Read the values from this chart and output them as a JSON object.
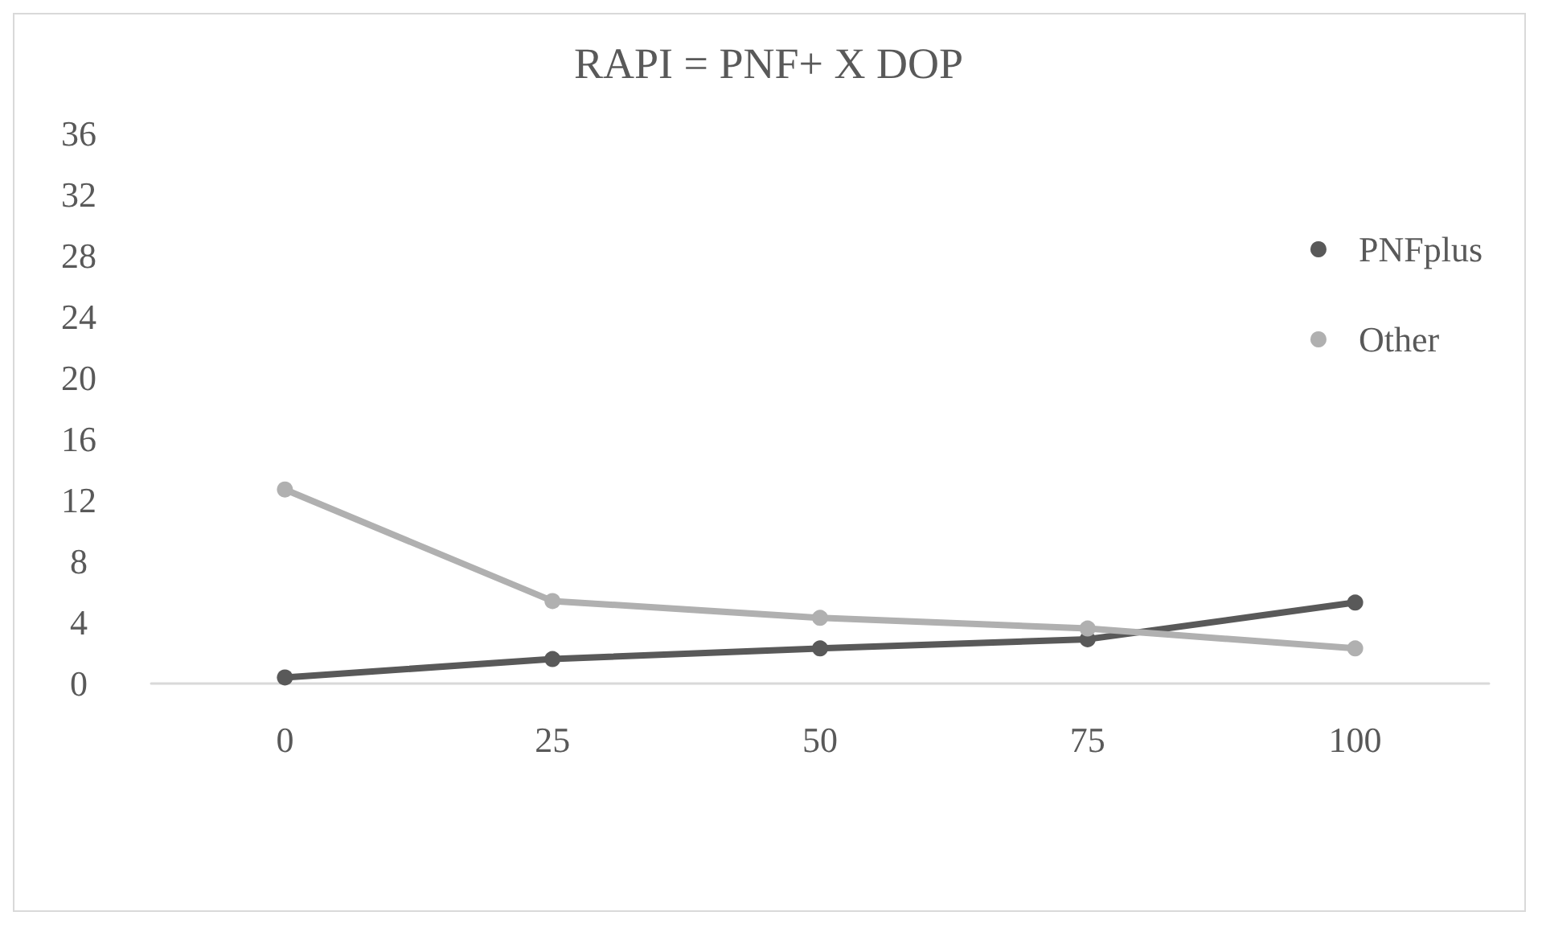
{
  "chart_data": {
    "type": "line",
    "title": "RAPI = PNF+ X DOP",
    "categories": [
      "0",
      "25",
      "50",
      "75",
      "100"
    ],
    "series": [
      {
        "name": "PNFplus",
        "color": "#595959",
        "values": [
          0.4,
          1.6,
          2.3,
          2.9,
          5.3
        ]
      },
      {
        "name": "Other",
        "color": "#b0b0b0",
        "values": [
          12.7,
          5.4,
          4.3,
          3.6,
          2.3
        ]
      }
    ],
    "ylim": [
      0,
      36
    ],
    "yticks": [
      0,
      4,
      8,
      12,
      16,
      20,
      24,
      28,
      32,
      36
    ],
    "grid": false,
    "legend": "right",
    "marker": "circle",
    "line_style": "solid"
  }
}
